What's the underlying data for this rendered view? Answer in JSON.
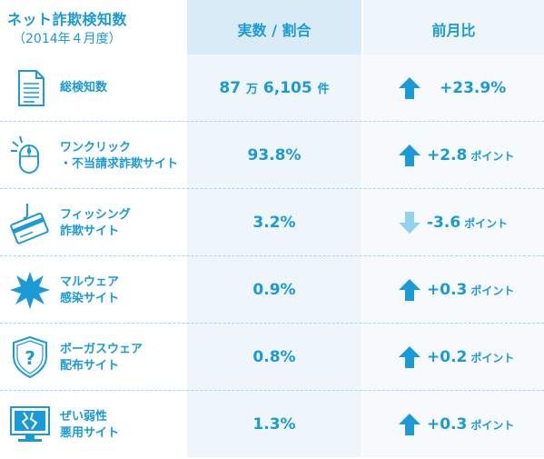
{
  "header": {
    "title": "ネット詐欺検知数",
    "subtitle": "（2014年４月度）",
    "col_ratio": "実数 / 割合",
    "col_prev": "前月比"
  },
  "colors": {
    "accent": "#1a9ad6",
    "header_bg": "#d9ebf7",
    "down_arrow": "#8fd3ee"
  },
  "rows": [
    {
      "icon": "document-icon",
      "label1": "総検知数",
      "label2": "",
      "value_main": "87",
      "value_unit1": "万",
      "value_main2": "6,105",
      "value_unit2": "件",
      "direction": "up",
      "change": "+23.9%",
      "change_unit": ""
    },
    {
      "icon": "mouse-click-icon",
      "label1": "ワンクリック",
      "label2": "・不当請求詐欺サイト",
      "value_main": "93.8%",
      "direction": "up",
      "change": "+2.8",
      "change_unit": "ポイント"
    },
    {
      "icon": "credit-card-hook-icon",
      "label1": "フィッシング",
      "label2": "詐欺サイト",
      "value_main": "3.2%",
      "direction": "down",
      "change": "-3.6",
      "change_unit": "ポイント"
    },
    {
      "icon": "burst-icon",
      "label1": "マルウェア",
      "label2": "感染サイト",
      "value_main": "0.9%",
      "direction": "up",
      "change": "+0.3",
      "change_unit": "ポイント"
    },
    {
      "icon": "shield-question-icon",
      "label1": "ボーガスウェア",
      "label2": "配布サイト",
      "value_main": "0.8%",
      "direction": "up",
      "change": "+0.2",
      "change_unit": "ポイント"
    },
    {
      "icon": "broken-monitor-icon",
      "label1": "ぜい弱性",
      "label2": "悪用サイト",
      "value_main": "1.3%",
      "direction": "up",
      "change": "+0.3",
      "change_unit": "ポイント"
    }
  ]
}
